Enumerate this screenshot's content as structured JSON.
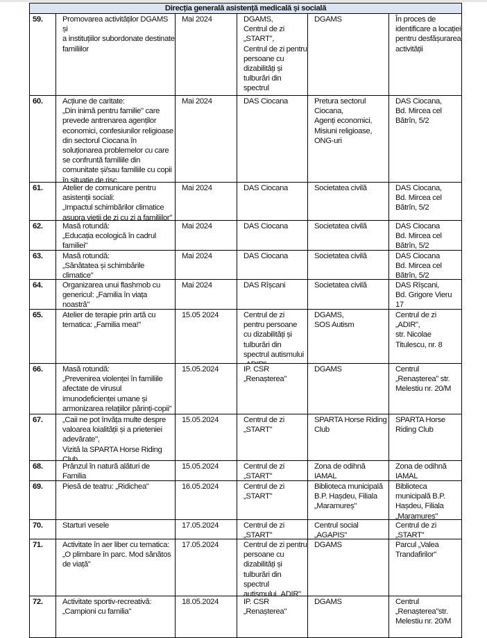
{
  "section_title": "Direcția generală asistență medicală și socială",
  "header_color": "#dbe5f1",
  "rows": [
    {
      "nr": "59.",
      "activity": "Promovarea activităților DGAMS și\na instituțiilor subordonate destinate\nfamiliilor",
      "date": "Mai 2024",
      "organizer": "DGAMS,\nCentrul de zi\n„START\",\nCentrul de zi pentru\npersoane cu\ndizabilități și\ntulburări din spectrul\nautismului „ADIR\"",
      "partners": "DGAMS",
      "location": "În proces de\nidentificare a locației\npentru desfășurarea\nactivității"
    },
    {
      "nr": "60.",
      "activity": "Acțiune de caritate:\n„Din inimă pentru familie\" care\nprevede antrenarea agenților\neconomici, confesiunilor religioase\ndin sectorul Ciocana în\nsoluționarea problemelor cu care\nse confruntă familiile din\ncomunitate și/sau familiile cu copii\nîn situație de risc",
      "date": "Mai 2024",
      "organizer": "DAS Ciocana",
      "partners": "Pretura sectorul\nCiocana,\nAgenți economici,\nMisiuni religioase,\nONG-uri",
      "location": "DAS Ciocana,\nBd. Mircea cel\nBătrîn, 5/2"
    },
    {
      "nr": "61.",
      "activity": "Atelier de comunicare pentru\nasistenții sociali:\n„Impactul schimbărilor climatice\nasupra vieții de zi cu zi a familiilor\"",
      "date": "Mai 2024",
      "organizer": "DAS Ciocana",
      "partners": "Societatea civilă",
      "location": "DAS Ciocana,\nBd. Mircea cel\nBătrîn, 5/2"
    },
    {
      "nr": "62.",
      "activity": "Masă rotundă:\n„Educația ecologică în cadrul\nfamiliei\"",
      "date": "Mai 2024",
      "organizer": "DAS Ciocana",
      "partners": "Societatea civilă",
      "location": "DAS Ciocana\nBd. Mircea cel\nBătrîn, 5/2"
    },
    {
      "nr": "63.",
      "activity": "Masă rotundă:\n„Sănătatea și schimbările\nclimatice\"",
      "date": "Mai 2024",
      "organizer": "DAS Ciocana",
      "partners": "Societatea civilă",
      "location": "DAS Ciocana\nBd. Mircea cel\nBătrîn, 5/2"
    },
    {
      "nr": "64.",
      "activity": "Organizarea unui flashmob cu\ngenericul: „Familia în viața noastră\"",
      "date": "Mai 2024",
      "organizer": "DAS Rîșcani",
      "partners": "Societatea civilă",
      "location": "DAS Rîșcani,\nBd. Grigore Vieru\n17"
    },
    {
      "nr": "65.",
      "activity": "Atelier de terapie prin artă cu\ntematica: „Familia mea!\"",
      "date": "15.05 2024",
      "organizer": "Centrul de zi\npentru persoane\ncu dizabilități și\ntulburări din\nspectrul autismului\n„ADIR\"",
      "partners": " DGAMS,\nSOS Autism",
      "location": "Centrul de zi\n„ADIR\",\nstr. Nicolae\nTitulescu, nr. 8"
    },
    {
      "nr": "66.",
      "activity": "Masă rotundă:\n„Prevenirea violenței în familiile\nafectate de virusul\nimunodeficienței umane și\narmonizarea relațiilor părinți-copii\"",
      "date": "15.05.2024",
      "organizer": "IP. CSR\n„Renașterea\"",
      "partners": "DGAMS",
      "location": "Centrul\n„Renașterea\" str.\nMelestiu nr. 20/M"
    },
    {
      "nr": "67.",
      "activity": "„Caii ne pot învăța multe despre\nvaloarea loialității și a prieteniei\nadevărate\",\n Vizită la SPARTA Horse Riding\n Club",
      "date": "15.05.2024",
      "organizer": "Centrul de zi\n„START\"",
      "partners": "SPARTA Horse Riding\nClub",
      "location": "SPARTA Horse\nRiding Club"
    },
    {
      "nr": "68.",
      "activity": "Prânzul în natură alături de Familia\n„SART\"",
      "date": "15.05.2024",
      "organizer": "Centrul de zi\n„START\"",
      "partners": "Zona de odihnă\nIAMAL",
      "location": "Zona de odihnă\nIAMAL"
    },
    {
      "nr": "69.",
      "activity": "Piesă de teatru: „Ridichea\"",
      "date": "16.05.2024",
      "organizer": "Centrul de zi\n„START\"",
      "partners": "Biblioteca municipală\nB.P. Hașdeu, Filiala\n„Maramureș\"",
      "location": "Biblioteca\nmunicipală B.P.\nHașdeu, Filiala\n„Maramureș\""
    },
    {
      "nr": "70.",
      "activity": "Starturi vesele",
      "date": "17.05.2024",
      "organizer": "Centrul de zi\n„START\"",
      "partners": "Centrul social\n„AGAPIS\"",
      "location": "Centrul de zi\n„START\""
    },
    {
      "nr": "71.",
      "activity": "Activitate în aer liber cu tematica:\n„O plimbare în parc. Mod sănătos\nde viață\"",
      "date": "17.05.2024",
      "organizer": "Centrul de zi pentru\npersoane cu\ndizabilități și\ntulburări din spectrul\nautismului „ADIR\"",
      "partners": " DGAMS",
      "location": "Parcul „Valea\nTrandafirilor\""
    },
    {
      "nr": "72.",
      "activity": "Activitate sportiv-recreativă:\n„Campioni cu familia\"",
      "date": "18.05.2024",
      "organizer": "IP. CSR\n„Renașterea\"",
      "partners": " DGAMS",
      "location": "Centrul\n„Renașterea\"str.\nMelestiu nr. 20/M"
    }
  ]
}
